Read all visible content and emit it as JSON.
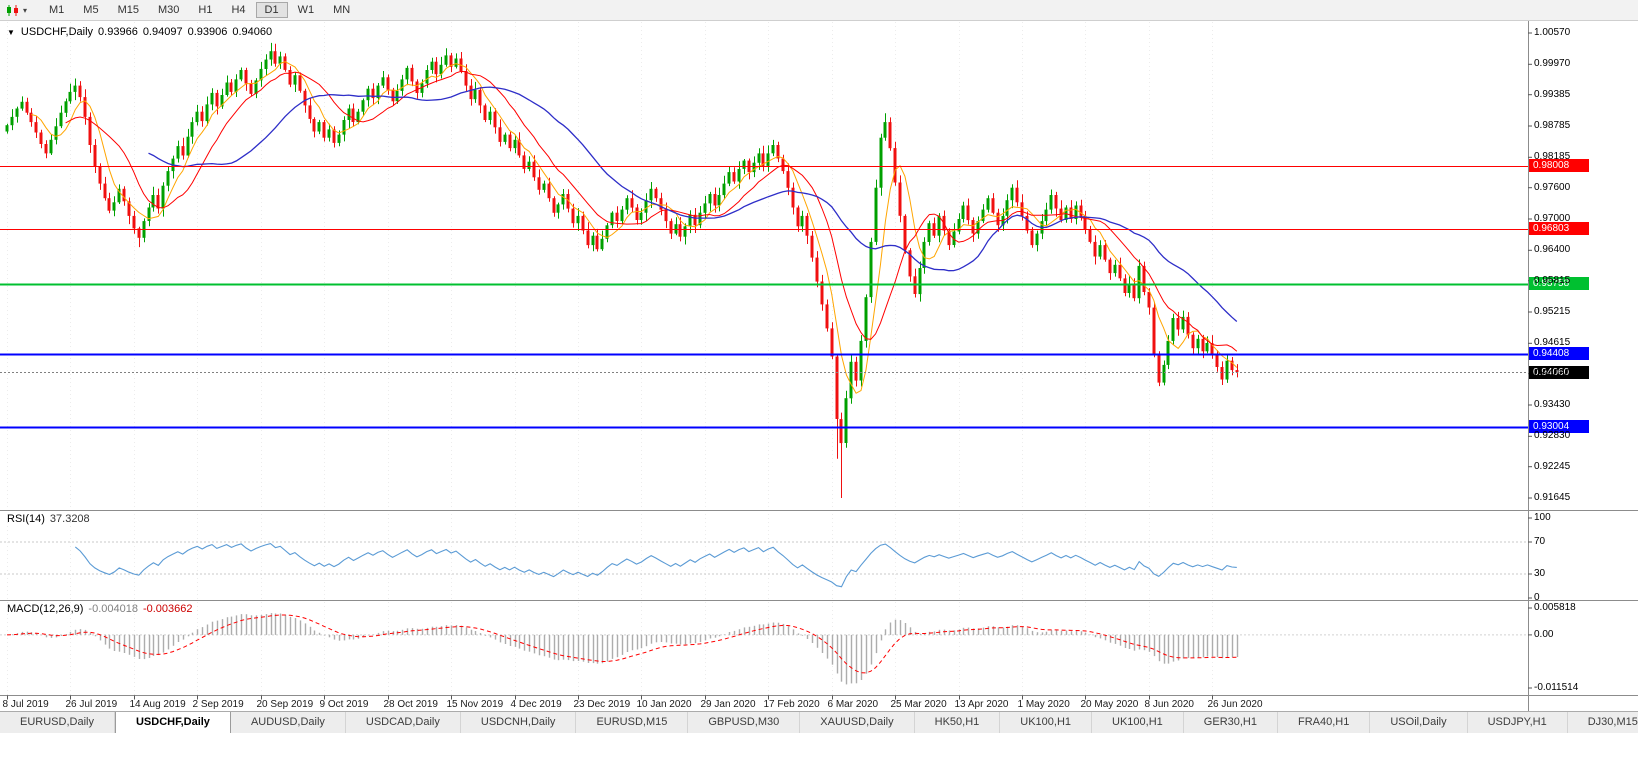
{
  "icons": {
    "collapse_triangle": "▼",
    "dropdown_chevron": "▾"
  },
  "toolbar": {
    "timeframes": [
      "M1",
      "M5",
      "M15",
      "M30",
      "H1",
      "H4",
      "D1",
      "W1",
      "MN"
    ],
    "active_timeframe": "D1"
  },
  "chart": {
    "header": {
      "symbol_label": "USDCHF,Daily",
      "open": "0.93966",
      "high": "0.94097",
      "low": "0.93906",
      "close": "0.94060"
    },
    "levels": [
      {
        "label": "0.98008",
        "price": 0.98008,
        "color": "#FF0000",
        "width": 1
      },
      {
        "label": "0.96803",
        "price": 0.96803,
        "color": "#FF0000",
        "width": 1
      },
      {
        "label": "0.95758",
        "price": 0.95758,
        "color": "#00C030",
        "width": 2
      },
      {
        "label": "0.94408",
        "price": 0.94408,
        "color": "#0000FF",
        "width": 2
      },
      {
        "label": "0.93004",
        "price": 0.93004,
        "color": "#0000FF",
        "width": 2
      }
    ],
    "current_price": {
      "label": "0.94060",
      "price": 0.9406
    }
  },
  "rsi": {
    "title": "RSI(14)",
    "value": "37.3208",
    "axis_labels": [
      "100",
      "70",
      "30",
      "0"
    ],
    "guide_levels": [
      70,
      30
    ]
  },
  "macd": {
    "title": "MACD(12,26,9)",
    "main_value": "-0.004018",
    "signal_value": "-0.003662",
    "axis_labels": [
      "0.005818",
      "0.00",
      "-0.011514"
    ]
  },
  "tabs": {
    "items": [
      "EURUSD,Daily",
      "USDCHF,Daily",
      "AUDUSD,Daily",
      "USDCAD,Daily",
      "USDCNH,Daily",
      "EURUSD,M15",
      "GBPUSD,M30",
      "XAUUSD,Daily",
      "HK50,H1",
      "UK100,H1",
      "UK100,H1",
      "GER30,H1",
      "FRA40,H1",
      "USOil,Daily",
      "USDJPY,H1",
      "DJ30,M15"
    ],
    "active_index": 1
  },
  "chart_data": {
    "type": "candlestick",
    "symbol": "USDCHF",
    "timeframe": "Daily",
    "y_axis_ticks": [
      "1.00570",
      "0.99970",
      "0.99385",
      "0.98785",
      "0.98185",
      "0.97600",
      "0.97000",
      "0.96400",
      "0.95815",
      "0.95215",
      "0.94615",
      "0.94030",
      "0.93430",
      "0.92830",
      "0.92245",
      "0.91645"
    ],
    "x_tick_labels": [
      "8 Jul 2019",
      "26 Jul 2019",
      "14 Aug 2019",
      "2 Sep 2019",
      "20 Sep 2019",
      "9 Oct 2019",
      "28 Oct 2019",
      "15 Nov 2019",
      "4 Dec 2019",
      "23 Dec 2019",
      "10 Jan 2020",
      "29 Jan 2020",
      "17 Feb 2020",
      "6 Mar 2020",
      "25 Mar 2020",
      "13 Apr 2020",
      "1 May 2020",
      "20 May 2020",
      "8 Jun 2020",
      "26 Jun 2020"
    ],
    "candles_per_tick": 13,
    "first_open": 0.9868,
    "close": [
      0.988,
      0.9896,
      0.9912,
      0.9925,
      0.9904,
      0.9886,
      0.9866,
      0.9844,
      0.9826,
      0.9852,
      0.9878,
      0.9904,
      0.9926,
      0.9944,
      0.9956,
      0.9934,
      0.9896,
      0.9842,
      0.98,
      0.9768,
      0.974,
      0.9716,
      0.9732,
      0.9758,
      0.9734,
      0.9706,
      0.9682,
      0.9664,
      0.9696,
      0.9722,
      0.9746,
      0.972,
      0.9764,
      0.9792,
      0.9816,
      0.984,
      0.9822,
      0.9858,
      0.9886,
      0.9906,
      0.9888,
      0.992,
      0.9942,
      0.9916,
      0.9938,
      0.9962,
      0.9944,
      0.9968,
      0.9986,
      0.996,
      0.994,
      0.9966,
      0.9988,
      1.0006,
      1.0022,
      0.9998,
      1.0012,
      0.9986,
      0.9958,
      0.9976,
      0.9946,
      0.9918,
      0.9892,
      0.9868,
      0.9886,
      0.9856,
      0.9872,
      0.9846,
      0.9862,
      0.989,
      0.9912,
      0.9886,
      0.9906,
      0.9928,
      0.995,
      0.9932,
      0.9956,
      0.9972,
      0.9948,
      0.9926,
      0.9946,
      0.9968,
      0.999,
      0.9964,
      0.9942,
      0.996,
      0.9986,
      1.0002,
      0.9978,
      0.9996,
      1.0014,
      0.9992,
      1.0008,
      0.9984,
      0.9956,
      0.993,
      0.9948,
      0.9918,
      0.989,
      0.9906,
      0.9876,
      0.9848,
      0.9862,
      0.9836,
      0.9852,
      0.9822,
      0.9796,
      0.981,
      0.978,
      0.9756,
      0.9768,
      0.974,
      0.9712,
      0.9728,
      0.9748,
      0.972,
      0.9692,
      0.9706,
      0.9678,
      0.965,
      0.9668,
      0.9642,
      0.9662,
      0.9688,
      0.9712,
      0.9696,
      0.9718,
      0.974,
      0.9722,
      0.9698,
      0.9712,
      0.9736,
      0.9758,
      0.974,
      0.9718,
      0.9696,
      0.9672,
      0.969,
      0.9666,
      0.9686,
      0.9708,
      0.9688,
      0.9712,
      0.973,
      0.9748,
      0.9726,
      0.9746,
      0.9768,
      0.979,
      0.9772,
      0.9796,
      0.9812,
      0.979,
      0.9808,
      0.9826,
      0.9802,
      0.9826,
      0.9842,
      0.9816,
      0.9792,
      0.976,
      0.9722,
      0.9686,
      0.9706,
      0.9668,
      0.9626,
      0.958,
      0.9536,
      0.949,
      0.9436,
      0.9316,
      0.927,
      0.9356,
      0.9426,
      0.939,
      0.9466,
      0.955,
      0.9656,
      0.976,
      0.9856,
      0.9886,
      0.9836,
      0.977,
      0.9706,
      0.964,
      0.959,
      0.9556,
      0.9606,
      0.9656,
      0.9692,
      0.9668,
      0.9706,
      0.9678,
      0.965,
      0.9676,
      0.97,
      0.9726,
      0.9698,
      0.9672,
      0.9696,
      0.9718,
      0.974,
      0.9712,
      0.9688,
      0.9706,
      0.9736,
      0.976,
      0.9732,
      0.9706,
      0.9678,
      0.965,
      0.9672,
      0.9696,
      0.9718,
      0.9746,
      0.972,
      0.9698,
      0.9722,
      0.97,
      0.9726,
      0.9706,
      0.968,
      0.9656,
      0.9628,
      0.965,
      0.9622,
      0.9596,
      0.9612,
      0.9586,
      0.9558,
      0.9576,
      0.9548,
      0.961,
      0.956,
      0.953,
      0.944,
      0.9386,
      0.942,
      0.9466,
      0.951,
      0.9488,
      0.9512,
      0.9478,
      0.9452,
      0.947,
      0.9446,
      0.9462,
      0.9438,
      0.9416,
      0.9392,
      0.9428,
      0.941,
      0.9406
    ],
    "wick_overrides": {
      "27": {
        "low": 0.9646
      },
      "54": {
        "high": 1.0038
      },
      "170": {
        "low": 0.924
      },
      "171": {
        "low": 0.91645
      },
      "180": {
        "high": 0.9903
      }
    },
    "colors": {
      "up": "#00A000",
      "down": "#F01010",
      "ma_fast": "#FFA500",
      "ma_mid": "#FF0000",
      "ma_slow": "#2E2EC8",
      "rsi_line": "#5B9BD5",
      "macd_histogram": "#ADADAD",
      "macd_signal": "#FF0000",
      "current_price_line": "#808080",
      "grid": "#ECECEC",
      "separator": "#8C8C8C"
    }
  }
}
